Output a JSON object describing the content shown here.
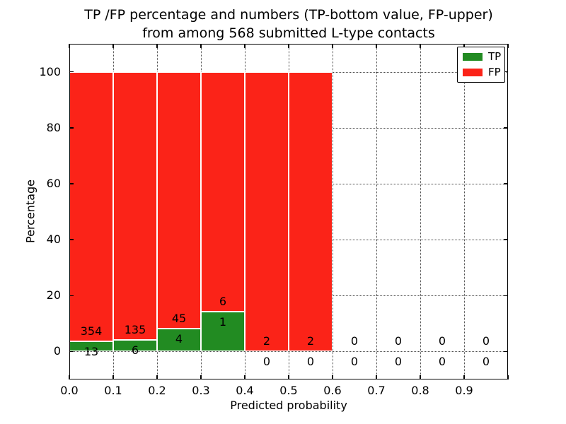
{
  "figure": {
    "title_line1": "TP /FP percentage and numbers (TP-bottom value, FP-upper)",
    "title_line2": "from among 568 submitted L-type contacts",
    "xlabel": "Predicted probability",
    "ylabel": "Percentage"
  },
  "legend": {
    "position": "upper-right",
    "items": [
      {
        "label": "TP",
        "color": "#228b22"
      },
      {
        "label": "FP",
        "color": "#fb2318"
      }
    ]
  },
  "chart_data": {
    "type": "bar",
    "subtype": "stacked-percentage-histogram",
    "title": "TP /FP percentage and numbers (TP-bottom value, FP-upper) from among 568 submitted L-type contacts",
    "xlabel": "Predicted probability",
    "ylabel": "Percentage",
    "total_contacts": 568,
    "bin_width": 0.1,
    "bin_starts": [
      0.0,
      0.1,
      0.2,
      0.3,
      0.4,
      0.5,
      0.6,
      0.7,
      0.8,
      0.9
    ],
    "series": [
      {
        "name": "TP",
        "color": "#228b22",
        "counts": [
          13,
          6,
          4,
          1,
          0,
          0,
          0,
          0,
          0,
          0
        ]
      },
      {
        "name": "FP",
        "color": "#fb2318",
        "counts": [
          354,
          135,
          45,
          6,
          2,
          2,
          0,
          0,
          0,
          0
        ]
      }
    ],
    "note": "bars show TP%% (green, bottom) and FP%% (red, top) of each bin summing to 100; bins with zero contacts have no bar, only 0/0 labels",
    "xticks": [
      "0.0",
      "0.1",
      "0.2",
      "0.3",
      "0.4",
      "0.5",
      "0.6",
      "0.7",
      "0.8",
      "0.9"
    ],
    "yticks": [
      0,
      20,
      40,
      60,
      80,
      100
    ],
    "xlim": [
      0.0,
      1.0
    ],
    "ylim": [
      -10,
      110
    ],
    "grid": "dotted, both axes",
    "legend_position": "upper right"
  }
}
